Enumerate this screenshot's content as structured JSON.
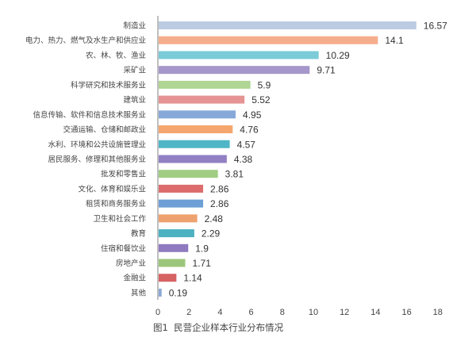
{
  "chart_data": {
    "type": "bar",
    "orientation": "horizontal",
    "caption": "图1  民营企业样本行业分布情况",
    "categories": [
      "制造业",
      "电力、热力、燃气及水生产和供应业",
      "农、林、牧、渔业",
      "采矿业",
      "科学研究和技术服务业",
      "建筑业",
      "信息传输、软件和信息技术服务业",
      "交通运输、仓储和邮政业",
      "水利、环境和公共设施管理业",
      "居民服务、修理和其他服务业",
      "批发和零售业",
      "文化、体育和娱乐业",
      "租赁和商务服务业",
      "卫生和社会工作",
      "教育",
      "住宿和餐饮业",
      "房地产业",
      "金融业",
      "其他"
    ],
    "values": [
      16.57,
      14.1,
      10.29,
      9.71,
      5.9,
      5.52,
      4.95,
      4.76,
      4.57,
      4.38,
      3.81,
      2.86,
      2.86,
      2.48,
      2.29,
      1.9,
      1.71,
      1.14,
      0.19
    ],
    "value_labels": [
      "16.57",
      "14.1",
      "10.29",
      "9.71",
      "5.9",
      "5.52",
      "4.95",
      "4.76",
      "4.57",
      "4.38",
      "3.81",
      "2.86",
      "2.86",
      "2.48",
      "2.29",
      "1.9",
      "1.71",
      "1.14",
      "0.19"
    ],
    "colors": [
      "#bccbe2",
      "#f6ad8c",
      "#7ccbd9",
      "#a597c9",
      "#b0d594",
      "#e59393",
      "#86a9d9",
      "#f5a66e",
      "#4fb6c7",
      "#9180c4",
      "#a0cd82",
      "#dc6c6c",
      "#6e9fd6",
      "#eea26f",
      "#4cb1c0",
      "#8f7ac0",
      "#9cc67b",
      "#d76262",
      "#8aa8d4"
    ],
    "xlim": [
      0,
      18
    ],
    "xticks": [
      "0",
      "2",
      "4",
      "6",
      "8",
      "10",
      "12",
      "14",
      "16",
      "18"
    ],
    "grid": false
  }
}
